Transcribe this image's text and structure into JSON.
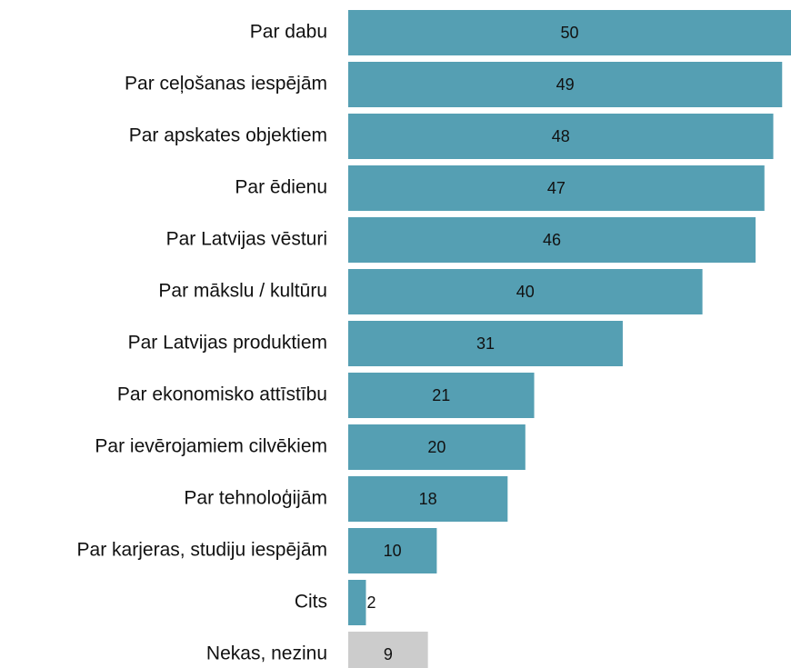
{
  "chart_data": {
    "type": "bar",
    "orientation": "horizontal",
    "categories": [
      "Par dabu",
      "Par ceļošanas iespējām",
      "Par apskates objektiem",
      "Par ēdienu",
      "Par Latvijas vēsturi",
      "Par mākslu / kultūru",
      "Par Latvijas produktiem",
      "Par ekonomisko attīstību",
      "Par ievērojamiem cilvēkiem",
      "Par tehnoloģijām",
      "Par karjeras, studiju iespējām",
      "Cits",
      "Nekas, nezinu"
    ],
    "values": [
      50,
      49,
      48,
      47,
      46,
      40,
      31,
      21,
      20,
      18,
      10,
      2,
      9
    ],
    "colors": [
      "#559fb3",
      "#559fb3",
      "#559fb3",
      "#559fb3",
      "#559fb3",
      "#559fb3",
      "#559fb3",
      "#559fb3",
      "#559fb3",
      "#559fb3",
      "#559fb3",
      "#559fb3",
      "#cccccc"
    ],
    "xlim": [
      0,
      50
    ]
  }
}
